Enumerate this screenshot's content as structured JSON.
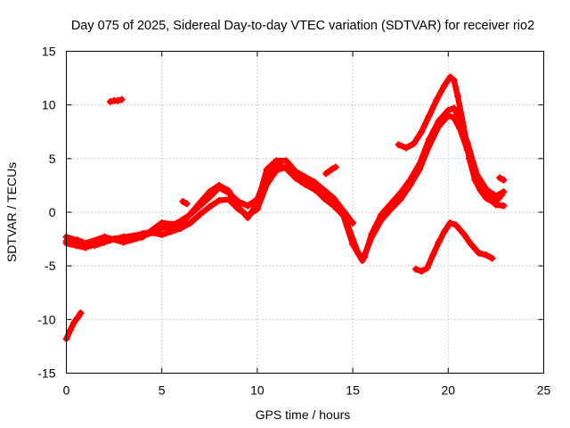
{
  "chart_data": {
    "type": "scatter",
    "title": "Day 075 of 2025, Sidereal Day-to-day VTEC variation (SDTVAR) for receiver rio2",
    "xlabel": "GPS time / hours",
    "ylabel": "SDTVAR / TECUs",
    "xlim": [
      0,
      25
    ],
    "ylim": [
      -15,
      15
    ],
    "x_ticks": [
      0,
      5,
      10,
      15,
      20,
      25
    ],
    "y_ticks": [
      -15,
      -10,
      -5,
      0,
      5,
      10,
      15
    ],
    "x_tick_labels": [
      "0",
      "5",
      "10",
      "15",
      "20",
      "25"
    ],
    "y_tick_labels": [
      "-15",
      "-10",
      "-5",
      "0",
      "5",
      "10",
      "15"
    ],
    "grid": true,
    "marker": "+",
    "color": "#ff0000",
    "series": [
      {
        "name": "early-arc",
        "x": [
          0.0,
          0.2,
          0.4,
          0.6,
          0.75
        ],
        "y": [
          -11.8,
          -11.0,
          -10.3,
          -9.8,
          -9.4
        ]
      },
      {
        "name": "isolated-arc",
        "x": [
          2.3,
          2.5,
          2.7,
          2.9
        ],
        "y": [
          10.3,
          10.4,
          10.4,
          10.5
        ]
      },
      {
        "name": "main-a",
        "x": [
          0.0,
          0.3,
          0.6,
          1.0,
          1.5,
          2.0,
          2.5,
          3.0,
          3.5,
          4.0,
          4.5,
          5.0,
          5.5,
          6.0,
          6.5,
          7.0,
          7.5,
          8.0,
          8.5,
          9.0,
          9.5,
          10.0,
          10.5,
          11.0,
          11.5,
          12.0,
          12.5,
          13.0,
          13.5,
          14.0,
          14.5,
          15.0,
          15.3,
          15.6,
          16.0,
          16.5,
          17.0,
          17.5,
          18.0,
          18.5,
          19.0,
          19.5,
          20.0,
          20.3,
          20.6,
          21.0,
          21.5,
          22.0,
          22.5,
          22.9
        ],
        "y": [
          -2.3,
          -2.5,
          -2.6,
          -2.9,
          -3.1,
          -2.8,
          -2.5,
          -2.3,
          -2.2,
          -2.0,
          -1.8,
          -1.5,
          -1.3,
          -0.8,
          -0.2,
          0.6,
          1.4,
          2.3,
          1.8,
          1.0,
          0.6,
          1.2,
          3.5,
          4.5,
          4.1,
          3.2,
          2.6,
          2.1,
          1.5,
          0.8,
          0.0,
          -2.5,
          -3.9,
          -4.2,
          -2.0,
          -0.2,
          0.8,
          1.8,
          3.0,
          4.5,
          6.8,
          8.5,
          9.5,
          9.7,
          8.6,
          6.5,
          3.5,
          2.1,
          1.5,
          1.9
        ]
      },
      {
        "name": "main-b",
        "x": [
          0.0,
          0.5,
          1.0,
          1.5,
          2.0,
          2.5,
          3.0,
          3.5,
          4.0,
          4.5,
          5.0,
          5.5,
          6.0,
          6.5,
          7.0,
          7.5,
          8.0,
          8.5,
          9.0,
          9.5,
          10.0,
          10.5,
          11.0,
          11.5,
          12.0,
          12.5,
          13.0,
          13.5,
          14.0,
          14.5,
          15.0,
          15.5,
          16.0,
          16.5,
          17.0,
          17.5,
          18.0,
          18.5,
          19.0,
          19.5,
          20.0,
          20.3,
          20.6,
          21.0,
          21.5,
          22.0,
          22.5,
          22.9
        ],
        "y": [
          -2.9,
          -3.1,
          -3.3,
          -3.0,
          -2.6,
          -2.5,
          -2.6,
          -2.4,
          -2.2,
          -1.9,
          -2.1,
          -1.8,
          -1.5,
          -1.0,
          -0.2,
          0.5,
          1.1,
          1.2,
          0.3,
          -0.3,
          0.3,
          2.6,
          3.9,
          4.2,
          3.6,
          2.8,
          2.2,
          1.3,
          0.6,
          -0.3,
          -3.0,
          -4.5,
          -2.3,
          -0.7,
          0.3,
          1.2,
          2.5,
          4.0,
          6.2,
          8.0,
          9.0,
          8.8,
          7.8,
          5.8,
          3.2,
          1.6,
          0.7,
          0.6
        ]
      },
      {
        "name": "main-c",
        "x": [
          0.0,
          1.0,
          2.0,
          3.0,
          4.0,
          5.0,
          6.0,
          7.0,
          7.5,
          8.0,
          8.5,
          9.0,
          9.5,
          10.0,
          10.5,
          11.0,
          11.5,
          12.0,
          13.0,
          14.0,
          15.0
        ],
        "y": [
          -2.7,
          -2.9,
          -2.3,
          -2.8,
          -2.3,
          -1.0,
          -1.2,
          0.9,
          1.9,
          2.5,
          2.0,
          0.5,
          -0.5,
          0.8,
          4.0,
          4.8,
          4.8,
          3.8,
          2.8,
          1.3,
          -1.0
        ]
      },
      {
        "name": "spike-arc",
        "x": [
          17.4,
          17.8,
          18.2,
          18.6,
          19.0,
          19.4,
          19.8,
          20.1,
          20.3,
          20.5,
          20.8,
          21.1,
          21.4,
          21.7,
          22.0,
          22.3,
          22.6,
          22.8
        ],
        "y": [
          6.3,
          6.0,
          6.4,
          7.5,
          9.0,
          10.5,
          11.8,
          12.6,
          12.3,
          10.8,
          8.0,
          5.0,
          3.0,
          2.0,
          1.3,
          1.0,
          1.2,
          1.6
        ]
      },
      {
        "name": "lower-arc",
        "x": [
          18.3,
          18.6,
          18.9,
          19.2,
          19.5,
          19.8,
          20.1,
          20.4,
          20.8,
          21.2,
          21.6,
          22.0,
          22.3
        ],
        "y": [
          -5.3,
          -5.5,
          -5.2,
          -4.0,
          -2.8,
          -1.8,
          -1.0,
          -1.2,
          -2.0,
          -3.0,
          -3.8,
          -4.0,
          -4.3
        ]
      },
      {
        "name": "late-stub",
        "x": [
          22.7,
          22.9
        ],
        "y": [
          3.2,
          3.0
        ]
      },
      {
        "name": "stub-6h",
        "x": [
          6.1,
          6.3
        ],
        "y": [
          1.0,
          0.8
        ]
      },
      {
        "name": "stub-14h",
        "x": [
          13.6,
          13.9,
          14.1
        ],
        "y": [
          3.6,
          4.0,
          4.2
        ]
      }
    ]
  }
}
